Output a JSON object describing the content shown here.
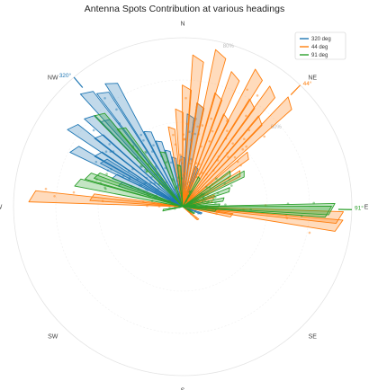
{
  "chart_data": {
    "type": "polar-area",
    "title": "Antenna Spots Contribution at various headings",
    "directions": [
      {
        "label": "N",
        "angle": 0
      },
      {
        "label": "NE",
        "angle": 45
      },
      {
        "label": "E",
        "angle": 90
      },
      {
        "label": "SE",
        "angle": 135
      },
      {
        "label": "S",
        "angle": 180
      },
      {
        "label": "SW",
        "angle": 225
      },
      {
        "label": "W",
        "angle": 270
      },
      {
        "label": "NW",
        "angle": 315
      }
    ],
    "ring_labels": [
      "80%",
      "60%"
    ],
    "legend_placement": "top-right",
    "series": [
      {
        "name": "320 deg",
        "color": "#1f77b4",
        "heading": 320,
        "heading_label": "320°",
        "values": [
          [
            330,
            0.86
          ],
          [
            325,
            0.84
          ],
          [
            320,
            0.9
          ],
          [
            318,
            0.7
          ],
          [
            314,
            0.78
          ],
          [
            310,
            0.66
          ],
          [
            306,
            0.82
          ],
          [
            302,
            0.6
          ],
          [
            298,
            0.74
          ],
          [
            294,
            0.45
          ],
          [
            290,
            0.4
          ],
          [
            300,
            0.55
          ],
          [
            335,
            0.5
          ],
          [
            340,
            0.42
          ],
          [
            345,
            0.35
          ],
          [
            350,
            0.3
          ],
          [
            5,
            0.55
          ],
          [
            10,
            0.62
          ],
          [
            0,
            0.3
          ],
          [
            20,
            0.25
          ],
          [
            60,
            0.15
          ],
          [
            110,
            0.12
          ]
        ]
      },
      {
        "name": "44 deg",
        "color": "#ff7f0e",
        "heading": 44,
        "heading_label": "44°",
        "values": [
          [
            352,
            0.48
          ],
          [
            358,
            0.58
          ],
          [
            2,
            0.72
          ],
          [
            6,
            0.9
          ],
          [
            10,
            0.62
          ],
          [
            14,
            0.95
          ],
          [
            18,
            0.7
          ],
          [
            22,
            0.85
          ],
          [
            26,
            0.6
          ],
          [
            30,
            0.92
          ],
          [
            34,
            0.75
          ],
          [
            38,
            0.88
          ],
          [
            42,
            0.7
          ],
          [
            46,
            0.9
          ],
          [
            52,
            0.5
          ],
          [
            60,
            0.4
          ],
          [
            72,
            0.2
          ],
          [
            80,
            0.18
          ],
          [
            94,
            0.95
          ],
          [
            97,
            0.95
          ],
          [
            274,
            0.91
          ],
          [
            276,
            0.55
          ],
          [
            100,
            0.3
          ],
          [
            130,
            0.12
          ]
        ]
      },
      {
        "name": "91 deg",
        "color": "#2ca02c",
        "heading": 91,
        "heading_label": "91°",
        "values": [
          [
            318,
            0.75
          ],
          [
            322,
            0.6
          ],
          [
            340,
            0.35
          ],
          [
            355,
            0.25
          ],
          [
            30,
            0.2
          ],
          [
            55,
            0.35
          ],
          [
            62,
            0.42
          ],
          [
            70,
            0.3
          ],
          [
            80,
            0.25
          ],
          [
            88,
            0.22
          ],
          [
            91,
            0.9
          ],
          [
            92,
            0.88
          ],
          [
            96,
            0.2
          ],
          [
            120,
            0.08
          ],
          [
            260,
            0.12
          ],
          [
            283,
            0.65
          ],
          [
            288,
            0.6
          ],
          [
            290,
            0.55
          ]
        ]
      }
    ]
  }
}
